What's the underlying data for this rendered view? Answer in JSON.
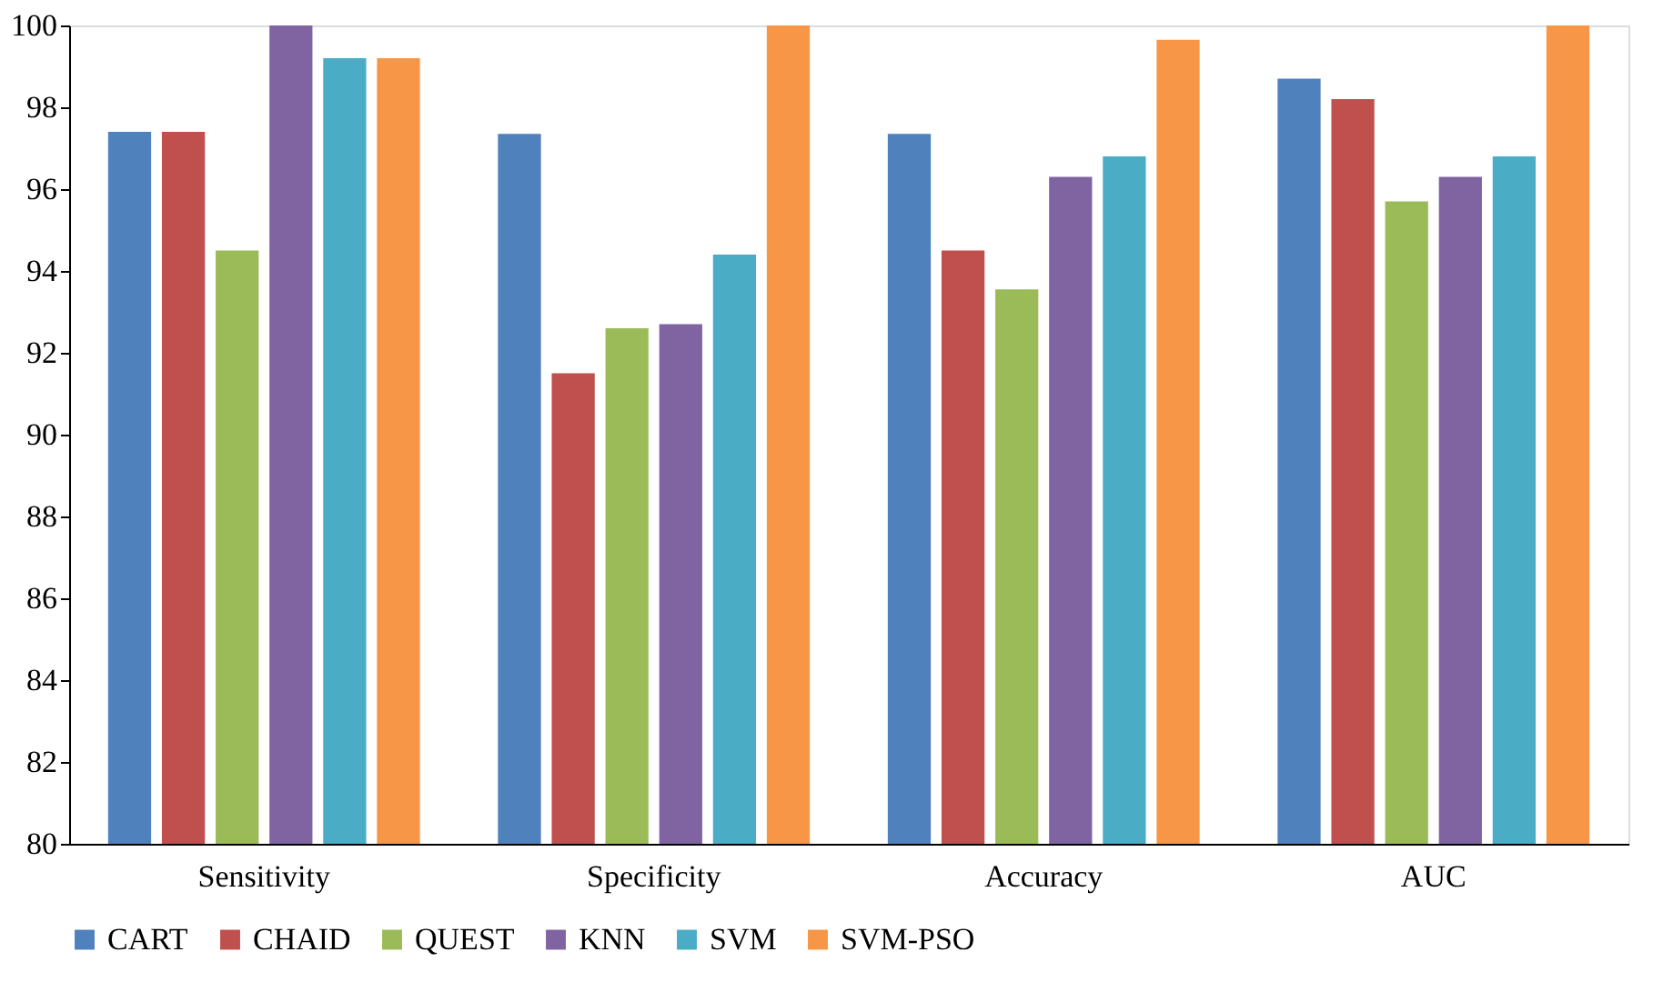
{
  "chart_data": {
    "type": "bar",
    "categories": [
      "Sensitivity",
      "Specificity",
      "Accuracy",
      "AUC"
    ],
    "series": [
      {
        "name": "CART",
        "color": "#4f81bd",
        "values": [
          97.4,
          97.35,
          97.35,
          98.7
        ]
      },
      {
        "name": "CHAID",
        "color": "#c0504d",
        "values": [
          97.4,
          91.5,
          94.5,
          98.2
        ]
      },
      {
        "name": "QUEST",
        "color": "#9bbb59",
        "values": [
          94.5,
          92.6,
          93.55,
          95.7
        ]
      },
      {
        "name": "KNN",
        "color": "#8064a2",
        "values": [
          100,
          92.7,
          96.3,
          96.3
        ]
      },
      {
        "name": "SVM",
        "color": "#4bacc6",
        "values": [
          99.2,
          94.4,
          96.8,
          96.8
        ]
      },
      {
        "name": "SVM-PSO",
        "color": "#f79646",
        "values": [
          99.2,
          100,
          99.65,
          100
        ]
      }
    ],
    "ylim": [
      80,
      100
    ],
    "yticks": [
      80,
      82,
      84,
      86,
      88,
      90,
      92,
      94,
      96,
      98,
      100
    ],
    "grid": false,
    "legend": "bottom"
  }
}
